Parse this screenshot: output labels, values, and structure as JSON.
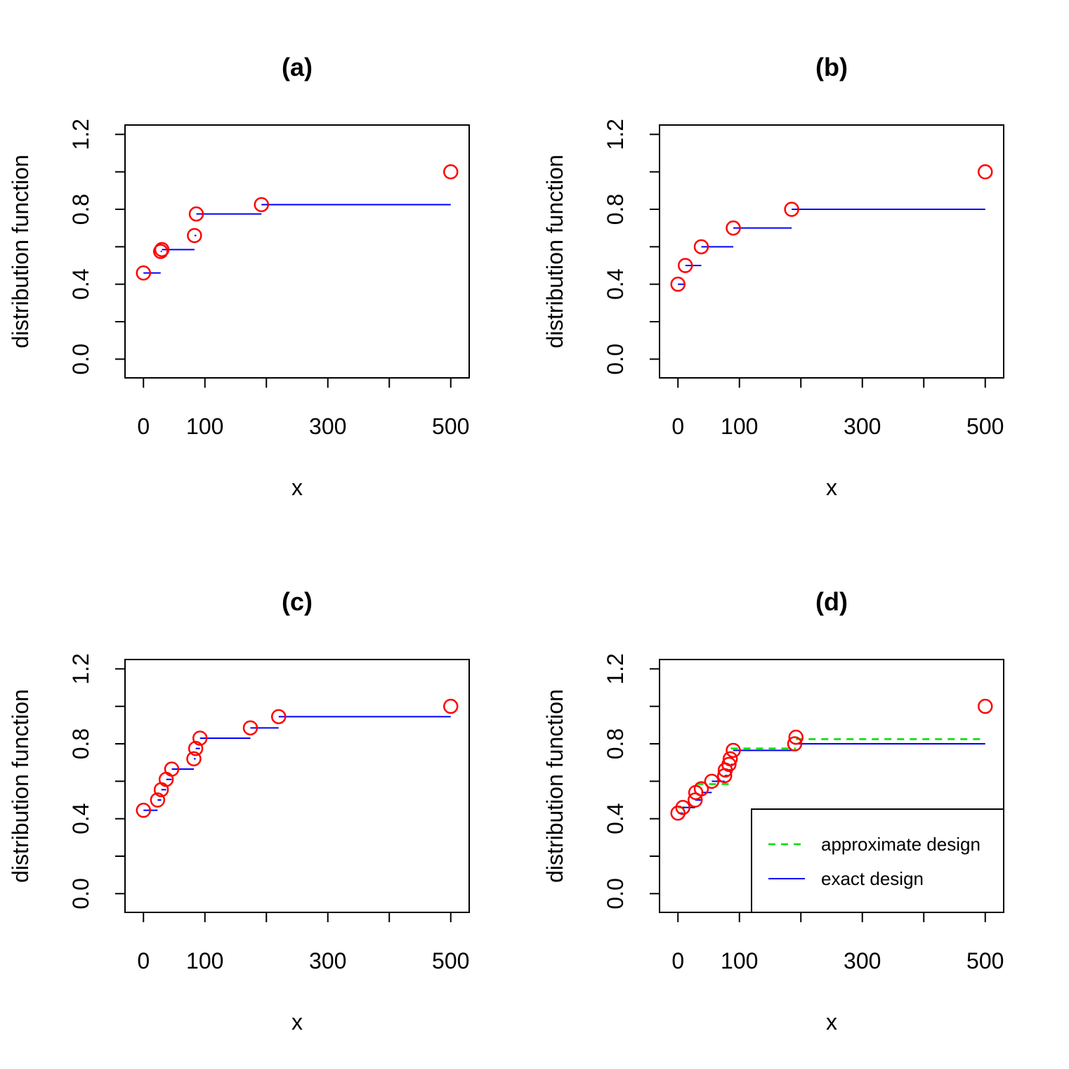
{
  "chart_data": [
    {
      "type": "line",
      "title": "(a)",
      "xlabel": "x",
      "ylabel": "distribution function",
      "xlim": [
        -30,
        530
      ],
      "ylim": [
        -0.1,
        1.25
      ],
      "xticks": [
        0,
        100,
        200,
        300,
        400,
        500
      ],
      "xtick_labels": [
        "0",
        "100",
        "",
        "300",
        "",
        "500"
      ],
      "yticks": [
        0,
        0.2,
        0.4,
        0.6,
        0.8,
        1.0,
        1.2
      ],
      "ytick_labels": [
        "0.0",
        "",
        "0.4",
        "",
        "0.8",
        "",
        "1.2"
      ],
      "series": [
        {
          "name": "exact design",
          "x": [
            0,
            28,
            30,
            83,
            86,
            192,
            500
          ],
          "y": [
            0.46,
            0.575,
            0.585,
            0.66,
            0.775,
            0.825,
            1.0
          ]
        }
      ],
      "legend": []
    },
    {
      "type": "line",
      "title": "(b)",
      "xlabel": "x",
      "ylabel": "distribution function",
      "xlim": [
        -30,
        530
      ],
      "ylim": [
        -0.1,
        1.25
      ],
      "xticks": [
        0,
        100,
        200,
        300,
        400,
        500
      ],
      "xtick_labels": [
        "0",
        "100",
        "",
        "300",
        "",
        "500"
      ],
      "yticks": [
        0,
        0.2,
        0.4,
        0.6,
        0.8,
        1.0,
        1.2
      ],
      "ytick_labels": [
        "0.0",
        "",
        "0.4",
        "",
        "0.8",
        "",
        "1.2"
      ],
      "series": [
        {
          "name": "exact design",
          "x": [
            0,
            12,
            38,
            90,
            185,
            500
          ],
          "y": [
            0.4,
            0.5,
            0.6,
            0.7,
            0.8,
            1.0
          ]
        }
      ],
      "legend": []
    },
    {
      "type": "line",
      "title": "(c)",
      "xlabel": "x",
      "ylabel": "distribution function",
      "xlim": [
        -30,
        530
      ],
      "ylim": [
        -0.1,
        1.25
      ],
      "xticks": [
        0,
        100,
        200,
        300,
        400,
        500
      ],
      "xtick_labels": [
        "0",
        "100",
        "",
        "300",
        "",
        "500"
      ],
      "yticks": [
        0,
        0.2,
        0.4,
        0.6,
        0.8,
        1.0,
        1.2
      ],
      "ytick_labels": [
        "0.0",
        "",
        "0.4",
        "",
        "0.8",
        "",
        "1.2"
      ],
      "series": [
        {
          "name": "exact design",
          "x": [
            0,
            23,
            29,
            37,
            46,
            82,
            85,
            92,
            174,
            220,
            500
          ],
          "y": [
            0.445,
            0.5,
            0.555,
            0.61,
            0.665,
            0.72,
            0.775,
            0.83,
            0.885,
            0.945,
            1.0
          ]
        }
      ],
      "legend": []
    },
    {
      "type": "line",
      "title": "(d)",
      "xlabel": "x",
      "ylabel": "distribution function",
      "xlim": [
        -30,
        530
      ],
      "ylim": [
        -0.1,
        1.25
      ],
      "xticks": [
        0,
        100,
        200,
        300,
        400,
        500
      ],
      "xtick_labels": [
        "0",
        "100",
        "",
        "300",
        "",
        "500"
      ],
      "yticks": [
        0,
        0.2,
        0.4,
        0.6,
        0.8,
        1.0,
        1.2
      ],
      "ytick_labels": [
        "0.0",
        "",
        "0.4",
        "",
        "0.8",
        "",
        "1.2"
      ],
      "series": [
        {
          "name": "exact design",
          "x": [
            0,
            8,
            28,
            38,
            55,
            76,
            83,
            86,
            90,
            190,
            500
          ],
          "y": [
            0.43,
            0.46,
            0.5,
            0.54,
            0.6,
            0.63,
            0.66,
            0.69,
            0.765,
            0.8,
            1.0
          ]
        },
        {
          "name": "approximate design",
          "x": [
            0,
            28,
            30,
            83,
            86,
            192,
            500
          ],
          "y": [
            0.46,
            0.575,
            0.585,
            0.66,
            0.775,
            0.825,
            1.0
          ]
        }
      ],
      "points": {
        "x": [
          0,
          8,
          28,
          29,
          38,
          55,
          76,
          77,
          83,
          85,
          90,
          190,
          192,
          500
        ],
        "y": [
          0.43,
          0.46,
          0.5,
          0.54,
          0.56,
          0.6,
          0.63,
          0.66,
          0.69,
          0.72,
          0.765,
          0.8,
          0.835,
          1.0
        ]
      },
      "legend": [
        {
          "label": "approximate design",
          "style": "dashed",
          "color": "#00dd00"
        },
        {
          "label": "exact design",
          "style": "solid",
          "color": "#0000ff"
        }
      ],
      "legend_position": "bottom-right"
    }
  ],
  "colors": {
    "points": "#ff0000",
    "exact": "#0000ff",
    "approximate": "#00dd00"
  }
}
